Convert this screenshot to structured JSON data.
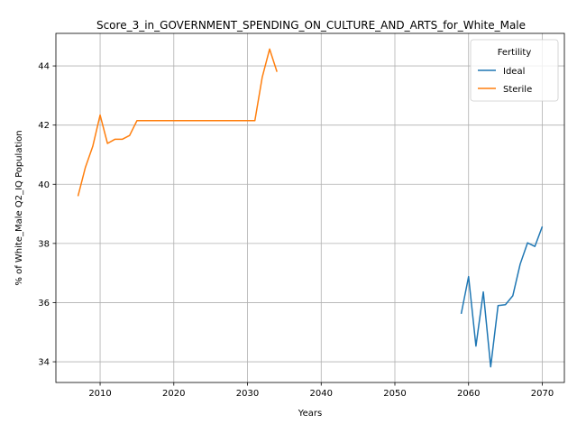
{
  "chart_data": {
    "type": "line",
    "title": "Score_3_in_GOVERNMENT_SPENDING_ON_CULTURE_AND_ARTS_for_White_Male",
    "xlabel": "Years",
    "ylabel": "% of White_Male Q2_IQ Population",
    "xlim": [
      2004,
      2073
    ],
    "ylim": [
      33.3,
      45.1
    ],
    "xticks": [
      2010,
      2020,
      2030,
      2040,
      2050,
      2060,
      2070
    ],
    "yticks": [
      34,
      36,
      38,
      40,
      42,
      44
    ],
    "xtick_labels": [
      "2010",
      "2020",
      "2030",
      "2040",
      "2050",
      "2060",
      "2070"
    ],
    "ytick_labels": [
      "34",
      "36",
      "38",
      "40",
      "42",
      "44"
    ],
    "grid": true,
    "legend": {
      "title": "Fertility",
      "position": "top-right",
      "entries": [
        "Ideal",
        "Sterile"
      ]
    },
    "series": [
      {
        "name": "Ideal",
        "color": "#1f77b4",
        "x": [
          2059,
          2060,
          2061,
          2062,
          2063,
          2064,
          2065,
          2066,
          2067,
          2068,
          2069,
          2070
        ],
        "y": [
          35.62,
          36.88,
          34.53,
          36.36,
          33.83,
          35.9,
          35.93,
          36.23,
          37.3,
          38.02,
          37.9,
          38.57
        ]
      },
      {
        "name": "Sterile",
        "color": "#ff7f0e",
        "x": [
          2007,
          2008,
          2009,
          2010,
          2011,
          2012,
          2013,
          2014,
          2015,
          2016,
          2017,
          2018,
          2019,
          2020,
          2021,
          2022,
          2023,
          2024,
          2025,
          2026,
          2027,
          2028,
          2029,
          2030,
          2031,
          2032,
          2033,
          2034
        ],
        "y": [
          39.6,
          40.57,
          41.28,
          42.34,
          41.38,
          41.52,
          41.52,
          41.65,
          42.15,
          42.15,
          42.15,
          42.15,
          42.15,
          42.15,
          42.15,
          42.15,
          42.15,
          42.15,
          42.15,
          42.15,
          42.15,
          42.15,
          42.15,
          42.15,
          42.15,
          43.62,
          44.57,
          43.8
        ]
      }
    ]
  }
}
